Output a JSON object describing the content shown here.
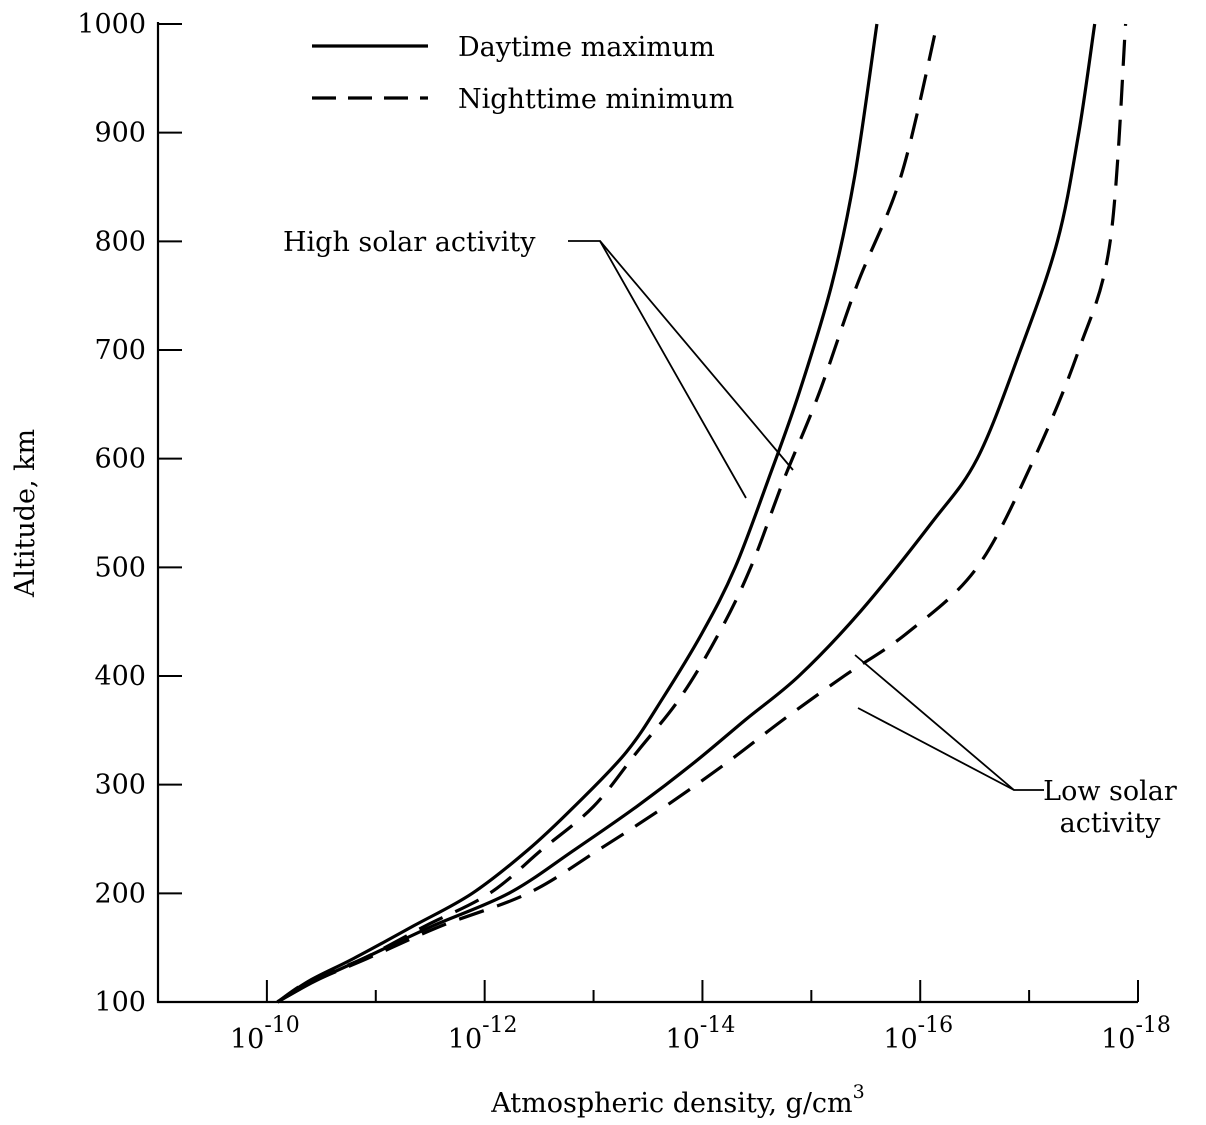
{
  "chart_data": {
    "type": "line",
    "xlabel": "Atmospheric density, g/cm",
    "xlabel_superscript": "3",
    "ylabel": "Altitude, km",
    "x_scale": "log-reversed",
    "xlim": [
      1e-09,
      1e-18
    ],
    "ylim": [
      100,
      1000
    ],
    "x_ticks": [
      {
        "value": 1e-10,
        "base": "10",
        "exp": "-10"
      },
      {
        "value": 1e-12,
        "base": "10",
        "exp": "-12"
      },
      {
        "value": 1e-14,
        "base": "10",
        "exp": "-14"
      },
      {
        "value": 1e-16,
        "base": "10",
        "exp": "-16"
      },
      {
        "value": 1e-18,
        "base": "10",
        "exp": "-18"
      }
    ],
    "y_ticks": [
      "100",
      "200",
      "300",
      "400",
      "500",
      "600",
      "700",
      "800",
      "900",
      "1000"
    ],
    "grid": false,
    "legend": {
      "position": "top-left",
      "entries": [
        {
          "label": "Daytime maximum",
          "style": "solid"
        },
        {
          "label": "Nighttime minimum",
          "style": "dashed"
        }
      ]
    },
    "annotations": [
      {
        "id": "high",
        "lines": [
          "High solar activity"
        ]
      },
      {
        "id": "low",
        "lines": [
          "Low solar",
          "activity"
        ]
      }
    ],
    "series": [
      {
        "group": "High solar activity",
        "style": "solid",
        "x": [
          8e-11,
          4e-11,
          1.6e-11,
          4.5e-12,
          1.3e-12,
          4e-13,
          1.5e-13,
          5e-14,
          2.3e-14,
          1e-14,
          5e-15,
          2.5e-15,
          1.3e-15,
          6.5e-16,
          4e-16,
          2.5e-16
        ],
        "y": [
          100,
          120,
          140,
          170,
          200,
          240,
          280,
          330,
          380,
          440,
          500,
          580,
          660,
          760,
          860,
          1000
        ]
      },
      {
        "group": "High solar activity",
        "style": "dashed",
        "x": [
          8e-11,
          4e-11,
          1.3e-11,
          3.5e-12,
          9e-13,
          3e-13,
          1e-13,
          4e-14,
          1.6e-14,
          7e-15,
          3.6e-15,
          1.8e-15,
          8.5e-16,
          3.8e-16,
          1.5e-16,
          7e-17
        ],
        "y": [
          100,
          120,
          140,
          170,
          200,
          240,
          280,
          330,
          380,
          440,
          500,
          580,
          660,
          760,
          860,
          1000
        ]
      },
      {
        "group": "Low solar activity",
        "style": "solid",
        "x": [
          8e-11,
          3.5e-11,
          1.3e-11,
          3e-12,
          6e-13,
          1.5e-13,
          4e-14,
          1.2e-14,
          4e-15,
          1.3e-15,
          3.5e-16,
          8e-17,
          3e-17,
          1.2e-17,
          5.5e-18,
          3.5e-18,
          2.5e-18
        ],
        "y": [
          100,
          120,
          140,
          170,
          200,
          240,
          280,
          320,
          360,
          400,
          460,
          540,
          600,
          700,
          800,
          900,
          1000
        ]
      },
      {
        "group": "Low solar activity",
        "style": "dashed",
        "x": [
          8e-11,
          3.5e-11,
          1.2e-11,
          2.5e-12,
          4e-13,
          9e-14,
          2.2e-14,
          6e-15,
          1.8e-15,
          5e-16,
          1.3e-16,
          3e-17,
          9e-18,
          3.5e-18,
          1.8e-18,
          1.3e-18
        ],
        "y": [
          100,
          120,
          140,
          170,
          200,
          240,
          280,
          320,
          360,
          400,
          440,
          500,
          600,
          700,
          800,
          1000
        ]
      }
    ]
  }
}
